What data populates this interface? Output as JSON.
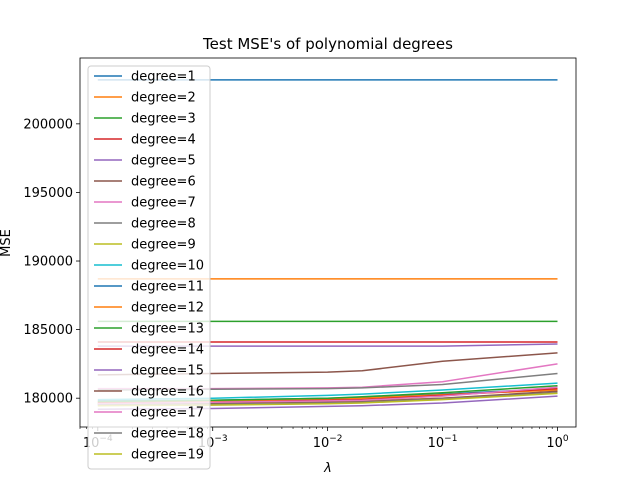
{
  "chart_data": {
    "type": "line",
    "title": "Test MSE's of polynomial degrees",
    "xlabel": "λ",
    "ylabel": "MSE",
    "x_scale": "log",
    "xlim": [
      7e-05,
      1.45
    ],
    "ylim": [
      177900,
      204800
    ],
    "x_ticks": [
      {
        "value": 0.0001,
        "base": "10",
        "exp": "−4"
      },
      {
        "value": 0.001,
        "base": "10",
        "exp": "−3"
      },
      {
        "value": 0.01,
        "base": "10",
        "exp": "−2"
      },
      {
        "value": 0.1,
        "base": "10",
        "exp": "−1"
      },
      {
        "value": 1,
        "base": "10",
        "exp": "0"
      }
    ],
    "y_ticks": [
      {
        "value": 180000,
        "label": "180000"
      },
      {
        "value": 185000,
        "label": "185000"
      },
      {
        "value": 190000,
        "label": "190000"
      },
      {
        "value": 195000,
        "label": "195000"
      },
      {
        "value": 200000,
        "label": "200000"
      }
    ],
    "grid": false,
    "legend_position": "upper-left",
    "x": [
      0.0001,
      0.001,
      0.01,
      0.02,
      0.1,
      1
    ],
    "series": [
      {
        "name": "degree=1",
        "color": "#1f77b4",
        "values": [
          203200,
          203200,
          203200,
          203200,
          203200,
          203200
        ]
      },
      {
        "name": "degree=2",
        "color": "#ff7f0e",
        "values": [
          188700,
          188700,
          188700,
          188700,
          188700,
          188700
        ]
      },
      {
        "name": "degree=3",
        "color": "#2ca02c",
        "values": [
          185600,
          185600,
          185600,
          185600,
          185600,
          185600
        ]
      },
      {
        "name": "degree=4",
        "color": "#d62728",
        "values": [
          184100,
          184100,
          184100,
          184100,
          184100,
          184100
        ]
      },
      {
        "name": "degree=5",
        "color": "#9467bd",
        "values": [
          183800,
          183800,
          183800,
          183800,
          183800,
          183950
        ]
      },
      {
        "name": "degree=6",
        "color": "#8c564b",
        "values": [
          181700,
          181800,
          181900,
          182000,
          182700,
          183300
        ]
      },
      {
        "name": "degree=7",
        "color": "#e377c2",
        "values": [
          180700,
          180700,
          180750,
          180800,
          181200,
          182500
        ]
      },
      {
        "name": "degree=8",
        "color": "#7f7f7f",
        "values": [
          180600,
          180650,
          180700,
          180750,
          181000,
          181800
        ]
      },
      {
        "name": "degree=9",
        "color": "#bcbd22",
        "values": [
          179600,
          179650,
          179750,
          179800,
          180000,
          180400
        ]
      },
      {
        "name": "degree=10",
        "color": "#17becf",
        "values": [
          179900,
          180000,
          180200,
          180300,
          180600,
          181100
        ]
      },
      {
        "name": "degree=11",
        "color": "#1f77b4",
        "values": [
          179800,
          179850,
          180000,
          180050,
          180300,
          180700
        ]
      },
      {
        "name": "degree=12",
        "color": "#ff7f0e",
        "values": [
          179700,
          179800,
          179900,
          180000,
          180250,
          180600
        ]
      },
      {
        "name": "degree=13",
        "color": "#2ca02c",
        "values": [
          179750,
          179850,
          180000,
          180100,
          180400,
          180900
        ]
      },
      {
        "name": "degree=14",
        "color": "#d62728",
        "values": [
          179650,
          179700,
          179850,
          179900,
          180200,
          180700
        ]
      },
      {
        "name": "degree=15",
        "color": "#9467bd",
        "values": [
          179200,
          179250,
          179400,
          179450,
          179650,
          180150
        ]
      },
      {
        "name": "degree=16",
        "color": "#8c564b",
        "values": [
          179550,
          179600,
          179700,
          179750,
          180000,
          180500
        ]
      },
      {
        "name": "degree=17",
        "color": "#e377c2",
        "values": [
          179600,
          179700,
          179800,
          179850,
          180150,
          180800
        ]
      },
      {
        "name": "degree=18",
        "color": "#7f7f7f",
        "values": [
          179500,
          179550,
          179650,
          179700,
          179950,
          180400
        ]
      },
      {
        "name": "degree=19",
        "color": "#bcbd22",
        "values": [
          179450,
          179500,
          179600,
          179650,
          179900,
          180350
        ]
      }
    ]
  }
}
